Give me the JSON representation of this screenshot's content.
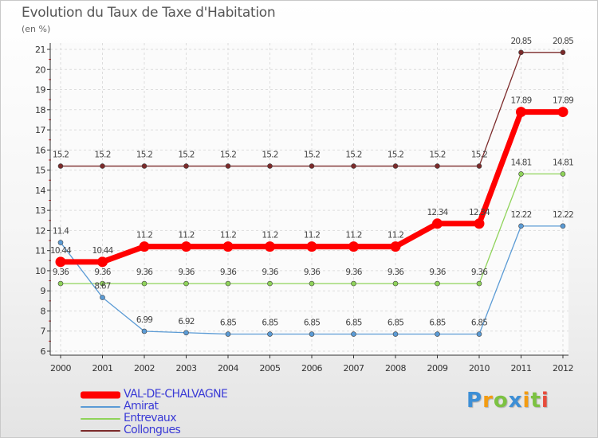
{
  "chart_data": {
    "type": "line",
    "title": "Evolution du Taux de Taxe d'Habitation",
    "ylabel": "(en %)",
    "xlabel": "",
    "categories": [
      "2000",
      "2001",
      "2002",
      "2003",
      "2004",
      "2005",
      "2006",
      "2007",
      "2008",
      "2009",
      "2010",
      "2011",
      "2012"
    ],
    "ylim": [
      6,
      21
    ],
    "yticks": [
      "6",
      "7",
      "8",
      "9",
      "10",
      "11",
      "12",
      "13",
      "14",
      "15",
      "16",
      "17",
      "18",
      "19",
      "20",
      "21"
    ],
    "grid": true,
    "series": [
      {
        "name": "VAL-DE-CHALVAGNE",
        "color": "#ff0000",
        "values": [
          10.44,
          10.44,
          11.2,
          11.2,
          11.2,
          11.2,
          11.2,
          11.2,
          11.2,
          12.34,
          12.34,
          17.89,
          17.89
        ],
        "labels": [
          "10.44",
          "10.44",
          "11.2",
          "11.2",
          "11.2",
          "11.2",
          "11.2",
          "11.2",
          "11.2",
          "12.34",
          "12.34",
          "17.89",
          "17.89"
        ]
      },
      {
        "name": "Amirat",
        "color": "#5b9bd5",
        "values": [
          11.4,
          8.67,
          6.99,
          6.92,
          6.85,
          6.85,
          6.85,
          6.85,
          6.85,
          6.85,
          6.85,
          12.22,
          12.22
        ],
        "labels": [
          "11.4",
          "8.67",
          "6.99",
          "6.92",
          "6.85",
          "6.85",
          "6.85",
          "6.85",
          "6.85",
          "6.85",
          "6.85",
          "12.22",
          "12.22"
        ]
      },
      {
        "name": "Entrevaux",
        "color": "#8fd35a",
        "values": [
          9.36,
          9.36,
          9.36,
          9.36,
          9.36,
          9.36,
          9.36,
          9.36,
          9.36,
          9.36,
          9.36,
          14.81,
          14.81
        ],
        "labels": [
          "9.36",
          "9.36",
          "9.36",
          "9.36",
          "9.36",
          "9.36",
          "9.36",
          "9.36",
          "9.36",
          "9.36",
          "9.36",
          "14.81",
          "14.81"
        ]
      },
      {
        "name": "Collongues",
        "color": "#7b2a2a",
        "values": [
          15.2,
          15.2,
          15.2,
          15.2,
          15.2,
          15.2,
          15.2,
          15.2,
          15.2,
          15.2,
          15.2,
          20.85,
          20.85
        ],
        "labels": [
          "15.2",
          "15.2",
          "15.2",
          "15.2",
          "15.2",
          "15.2",
          "15.2",
          "15.2",
          "15.2",
          "15.2",
          "15.2",
          "20.85",
          "20.85"
        ]
      }
    ],
    "legend": "bottom-left"
  },
  "logo": {
    "letters": [
      "P",
      "r",
      "o",
      "x",
      "i",
      "t",
      "i"
    ],
    "colors": [
      "#3d8fd6",
      "#f39c12",
      "#7cc242",
      "#3d8fd6",
      "#f39c12",
      "#7cc242",
      "#e74c3c"
    ]
  }
}
